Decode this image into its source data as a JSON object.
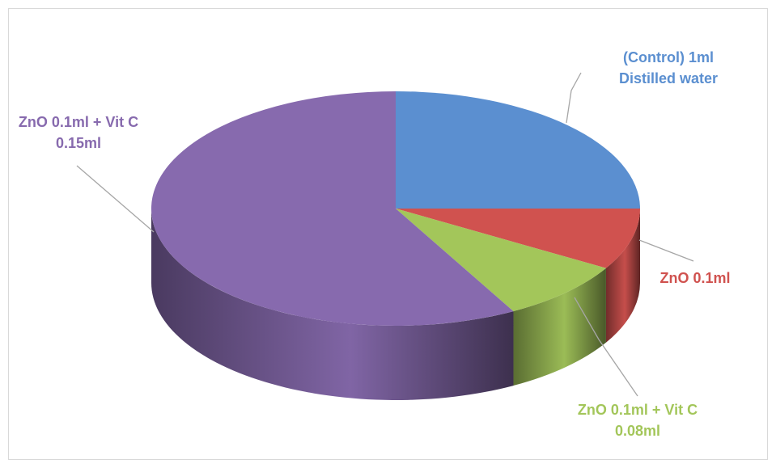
{
  "chart_data": {
    "type": "pie3d",
    "categories": [
      "(Control) 1ml Distilled water",
      "ZnO 0.1ml",
      "ZnO 0.1ml + Vit C 0.08ml",
      "ZnO 0.1ml + Vit C 0.15ml"
    ],
    "values": [
      25,
      8.5,
      8.5,
      58
    ],
    "colors": [
      "#5b8fd0",
      "#d0524f",
      "#a3c65a",
      "#876aae"
    ]
  }
}
